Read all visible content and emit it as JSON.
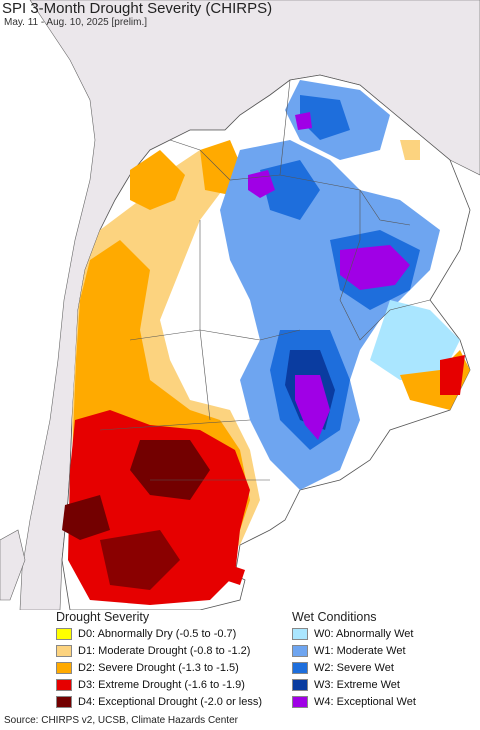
{
  "title": "SPI 3-Month Drought Severity (CHIRPS)",
  "subtitle": "May. 11 - Aug. 10, 2025 [prelim.]",
  "colors": {
    "ocean": "#ffffff",
    "outside_land": "#ebe7eb",
    "neutral": "#ffffff",
    "border": "#555555"
  },
  "legend": {
    "drought": {
      "heading": "Drought Severity",
      "items": [
        {
          "label": "D0: Abnormally Dry (-0.5 to -0.7)",
          "color": "#ffff00"
        },
        {
          "label": "D1: Moderate Drought (-0.8 to -1.2)",
          "color": "#fcd37f"
        },
        {
          "label": "D2: Severe Drought (-1.3 to -1.5)",
          "color": "#ffaa00"
        },
        {
          "label": "D3: Extreme Drought (-1.6 to -1.9)",
          "color": "#e60000"
        },
        {
          "label": "D4: Exceptional Drought (-2.0 or less)",
          "color": "#730000"
        }
      ]
    },
    "wet": {
      "heading": "Wet Conditions",
      "items": [
        {
          "label": "W0: Abnormally Wet",
          "color": "#aae6ff"
        },
        {
          "label": "W1: Moderate Wet",
          "color": "#6ea5f0"
        },
        {
          "label": "W2: Severe Wet",
          "color": "#1e6edc"
        },
        {
          "label": "W3: Extreme Wet",
          "color": "#0a3ca0"
        },
        {
          "label": "W4: Exceptional Wet",
          "color": "#a000e6"
        }
      ]
    }
  },
  "source": "Source: CHIRPS v2, UCSB, Climate Hazards Center"
}
